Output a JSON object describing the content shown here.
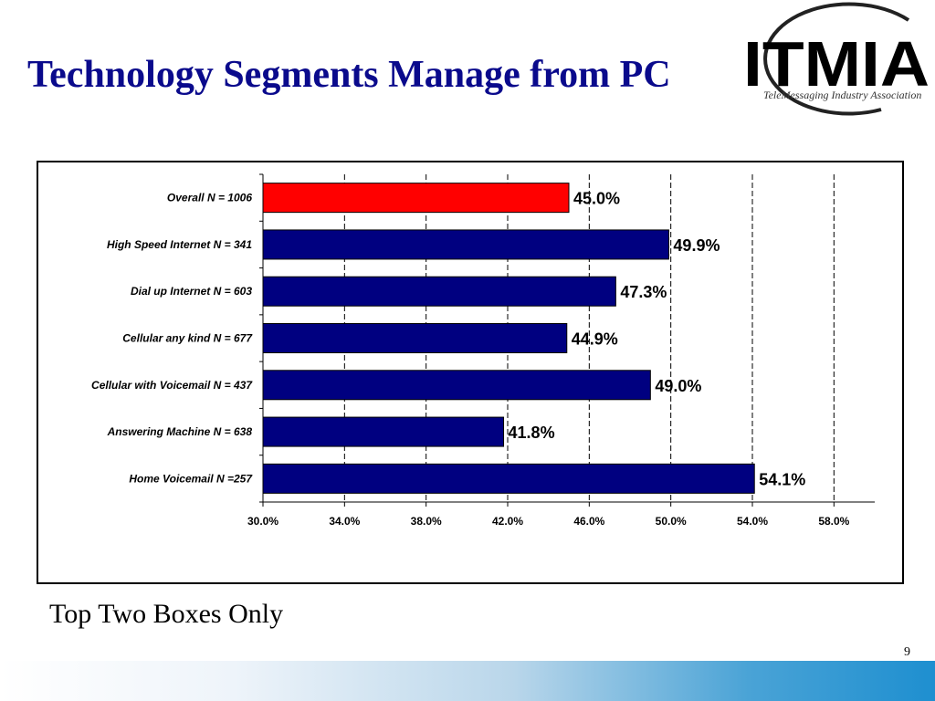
{
  "slide": {
    "title": "Technology Segments Manage from PC",
    "footnote": "Top Two Boxes Only",
    "page_number": "9"
  },
  "logo": {
    "text": "ITMIA",
    "tagline": "TeleMessaging Industry Association"
  },
  "colors": {
    "title": "#0a0a8c",
    "highlight_bar": "#ff0000",
    "bar": "#000080"
  },
  "chart_data": {
    "type": "bar",
    "orientation": "horizontal",
    "categories": [
      "Overall N = 1006",
      "High Speed Internet N = 341",
      "Dial up Internet N = 603",
      "Cellular any kind N = 677",
      "Cellular with Voicemail N = 437",
      "Answering Machine N = 638",
      "Home Voicemail N =257"
    ],
    "values": [
      45.0,
      49.9,
      47.3,
      44.9,
      49.0,
      41.8,
      54.1
    ],
    "data_labels": [
      "45.0%",
      "49.9%",
      "47.3%",
      "44.9%",
      "49.0%",
      "41.8%",
      "54.1%"
    ],
    "highlight_index": 0,
    "xlim": [
      30,
      60
    ],
    "xticks": [
      30,
      34,
      38,
      42,
      46,
      50,
      54,
      58
    ],
    "xtick_labels": [
      "30.0%",
      "34.0%",
      "38.0%",
      "42.0%",
      "46.0%",
      "50.0%",
      "54.0%",
      "58.0%"
    ],
    "grid": "vertical-dashed",
    "legend": "none"
  }
}
